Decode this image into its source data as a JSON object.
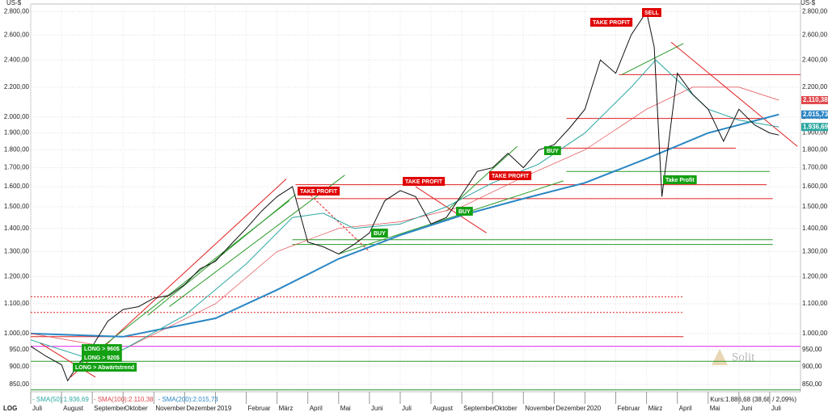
{
  "chart_data": {
    "type": "line",
    "log": true,
    "grid": true,
    "unit_label": "US-$",
    "scale_label": "LOG",
    "quote": "Kurs:1.886,68 (38,68 / 2,09%)",
    "brand": "Solit",
    "xlim": [
      0,
      25
    ],
    "ylim": [
      830,
      2870
    ],
    "xticks": [
      {
        "value": 0,
        "label": "Juli"
      },
      {
        "value": 1,
        "label": "August"
      },
      {
        "value": 2,
        "label": "September"
      },
      {
        "value": 3,
        "label": "Oktober"
      },
      {
        "value": 4,
        "label": "November"
      },
      {
        "value": 5,
        "label": "Dezember"
      },
      {
        "value": 6,
        "label": "2019"
      },
      {
        "value": 7,
        "label": "Februar"
      },
      {
        "value": 8,
        "label": "März"
      },
      {
        "value": 9,
        "label": "April"
      },
      {
        "value": 10,
        "label": "Mai"
      },
      {
        "value": 11,
        "label": "Juni"
      },
      {
        "value": 12,
        "label": "Juli"
      },
      {
        "value": 13,
        "label": "August"
      },
      {
        "value": 14,
        "label": "September"
      },
      {
        "value": 15,
        "label": "Oktober"
      },
      {
        "value": 16,
        "label": "November"
      },
      {
        "value": 17,
        "label": "Dezember"
      },
      {
        "value": 18,
        "label": "2020"
      },
      {
        "value": 19,
        "label": "Februar"
      },
      {
        "value": 20,
        "label": "März"
      },
      {
        "value": 21,
        "label": "April"
      },
      {
        "value": 22,
        "label": "Mai"
      },
      {
        "value": 23,
        "label": "Juni"
      },
      {
        "value": 24,
        "label": "Juli"
      }
    ],
    "yticks": [
      {
        "value": 850,
        "label": "850,00"
      },
      {
        "value": 900,
        "label": "900,00"
      },
      {
        "value": 950,
        "label": "950,00"
      },
      {
        "value": 1000,
        "label": "1.000,00"
      },
      {
        "value": 1100,
        "label": "1.100,00"
      },
      {
        "value": 1200,
        "label": "1.200,00"
      },
      {
        "value": 1300,
        "label": "1.300,00"
      },
      {
        "value": 1400,
        "label": "1.400,00"
      },
      {
        "value": 1500,
        "label": "1.500,00"
      },
      {
        "value": 1600,
        "label": "1.600,00"
      },
      {
        "value": 1700,
        "label": "1.700,00"
      },
      {
        "value": 1800,
        "label": "1.800,00"
      },
      {
        "value": 1900,
        "label": "1.900,00"
      },
      {
        "value": 2000,
        "label": "2.000,00"
      },
      {
        "value": 2200,
        "label": "2.200,00"
      },
      {
        "value": 2400,
        "label": "2.400,00"
      },
      {
        "value": 2600,
        "label": "2.600,00"
      },
      {
        "value": 2800,
        "label": "2.800,00"
      }
    ],
    "series": [
      {
        "color": "#111111",
        "x": [
          0,
          0.5,
          1,
          1.2,
          1.5,
          2,
          2.5,
          3,
          3.5,
          4,
          4.5,
          5,
          5.5,
          6,
          6.5,
          7,
          7.5,
          8,
          8.5,
          9,
          9.5,
          10,
          10.5,
          11,
          11.5,
          12,
          12.5,
          13,
          13.5,
          14,
          14.5,
          15,
          15.5,
          16,
          16.5,
          17,
          17.5,
          18,
          18.5,
          19,
          19.5,
          20,
          20.25,
          20.5,
          21,
          21.5,
          22,
          22.5,
          23,
          23.5,
          24,
          24.3
        ],
        "values": [
          960,
          930,
          905,
          860,
          900,
          960,
          1040,
          1080,
          1090,
          1120,
          1130,
          1170,
          1230,
          1260,
          1330,
          1400,
          1480,
          1550,
          1600,
          1340,
          1320,
          1290,
          1330,
          1380,
          1530,
          1580,
          1550,
          1420,
          1450,
          1560,
          1680,
          1700,
          1780,
          1700,
          1800,
          1830,
          1930,
          2050,
          2400,
          2300,
          2600,
          2800,
          2500,
          1550,
          2300,
          2150,
          2050,
          1850,
          2050,
          1950,
          1900,
          1887
        ]
      },
      {
        "name": "SMA(50)",
        "legend": "- SMA(50):1.936,69",
        "color": "#2aa7a0",
        "badge": {
          "value": 1936.69,
          "label": "1.936,69"
        },
        "x": [
          0,
          2,
          3,
          5,
          7,
          8.5,
          9.5,
          10.5,
          12,
          13.5,
          15,
          16.5,
          18,
          19.5,
          20.3,
          21,
          22,
          23,
          24.3
        ],
        "values": [
          980,
          920,
          950,
          1060,
          1250,
          1450,
          1470,
          1400,
          1420,
          1500,
          1620,
          1720,
          1900,
          2200,
          2400,
          2250,
          2050,
          1980,
          1937
        ]
      },
      {
        "name": "SMA(100)",
        "legend": "- SMA(100):2.110,38",
        "color": "#e0474c",
        "badge": {
          "value": 2110.38,
          "label": "2.110,38"
        },
        "x": [
          0,
          3,
          6,
          8,
          10,
          12,
          14,
          16,
          18,
          20,
          21.5,
          23,
          24.3
        ],
        "values": [
          1000,
          950,
          1100,
          1300,
          1400,
          1430,
          1500,
          1650,
          1800,
          2050,
          2200,
          2200,
          2110
        ]
      },
      {
        "name": "SMA(200)",
        "legend": "- SMA(200):2.015,73",
        "color": "#2a86c4",
        "badge": {
          "value": 2015.73,
          "label": "2.015,73"
        },
        "x": [
          0,
          3,
          6,
          8,
          10,
          12,
          14,
          16,
          18,
          20,
          22,
          24.3
        ],
        "values": [
          1000,
          990,
          1050,
          1150,
          1270,
          1370,
          1460,
          1540,
          1620,
          1750,
          1900,
          2016
        ]
      }
    ],
    "levels": [
      {
        "value": 2290,
        "from": 19.1,
        "to": 25,
        "color": "#e02020"
      },
      {
        "value": 1990,
        "from": 17.4,
        "to": 23.9,
        "color": "#e02020"
      },
      {
        "value": 1810,
        "from": 17,
        "to": 22.9,
        "color": "#e02020"
      },
      {
        "value": 1680,
        "from": 17.4,
        "to": 24,
        "color": "#2a9a2a"
      },
      {
        "value": 1610,
        "from": 8.6,
        "to": 23.9,
        "color": "#e02020"
      },
      {
        "value": 1540,
        "from": 8.6,
        "to": 24.1,
        "color": "#e02020"
      },
      {
        "value": 1350,
        "from": 8.5,
        "to": 24.1,
        "color": "#2a9a2a"
      },
      {
        "value": 1330,
        "from": 8.5,
        "to": 24.1,
        "color": "#2a9a2a"
      },
      {
        "value": 1125,
        "from": 0,
        "to": 21.2,
        "color": "#e02020",
        "dash": true
      },
      {
        "value": 1070,
        "from": 0,
        "to": 21.2,
        "color": "#e02020",
        "dash": true
      },
      {
        "value": 990,
        "from": 0,
        "to": 21.2,
        "color": "#e02020"
      },
      {
        "value": 960,
        "from": 0,
        "to": 25,
        "color": "#e020e0"
      },
      {
        "value": 915,
        "from": 0,
        "to": 25,
        "color": "#2a9a2a"
      },
      {
        "value": 835,
        "from": 0,
        "to": 25,
        "color": "#2a9a2a"
      }
    ],
    "trendlines": [
      {
        "x": [
          0.3,
          2.1
        ],
        "y": [
          970,
          870
        ],
        "color": "#e02020"
      },
      {
        "x": [
          1.3,
          8.3
        ],
        "y": [
          870,
          1640
        ],
        "color": "#e02020"
      },
      {
        "x": [
          1.5,
          8.4
        ],
        "y": [
          900,
          1530
        ],
        "color": "#2a9a2a"
      },
      {
        "x": [
          3.8,
          8.6
        ],
        "y": [
          1060,
          1560
        ],
        "color": "#2a9a2a"
      },
      {
        "x": [
          4.5,
          10.2
        ],
        "y": [
          1090,
          1660
        ],
        "color": "#2a9a2a"
      },
      {
        "x": [
          9,
          11
        ],
        "y": [
          1570,
          1300
        ],
        "color": "#e02020",
        "dash": true
      },
      {
        "x": [
          10,
          17.3
        ],
        "y": [
          1290,
          1630
        ],
        "color": "#2a9a2a"
      },
      {
        "x": [
          13.5,
          15.8
        ],
        "y": [
          1480,
          1820
        ],
        "color": "#2a9a2a"
      },
      {
        "x": [
          12.5,
          14.8
        ],
        "y": [
          1600,
          1380
        ],
        "color": "#e02020"
      },
      {
        "x": [
          19.2,
          21.2
        ],
        "y": [
          2290,
          2530
        ],
        "color": "#2a9a2a"
      },
      {
        "x": [
          20.8,
          24.9
        ],
        "y": [
          2540,
          1820
        ],
        "color": "#e02020"
      }
    ],
    "annotations": [
      {
        "text": "TAKE PROFIT",
        "color": "#e00000"
      },
      {
        "text": "TAKE PROFIT",
        "color": "#e00000"
      },
      {
        "text": "TAKE PROFIT",
        "color": "#e00000"
      },
      {
        "text": "TAKE PROFIT",
        "color": "#e00000"
      },
      {
        "text": "SELL",
        "color": "#e00000"
      },
      {
        "text": "BUY",
        "color": "#13a013"
      },
      {
        "text": "BUY",
        "color": "#13a013"
      },
      {
        "text": "BUY",
        "color": "#13a013"
      },
      {
        "text": "LONG > 960$",
        "color": "#13a013"
      },
      {
        "text": "LONG > 920$",
        "color": "#13a013"
      },
      {
        "text": "LONG > Abwärtstrend",
        "color": "#13a013"
      },
      {
        "text": "Take Profit",
        "color": "#13a013"
      }
    ]
  }
}
